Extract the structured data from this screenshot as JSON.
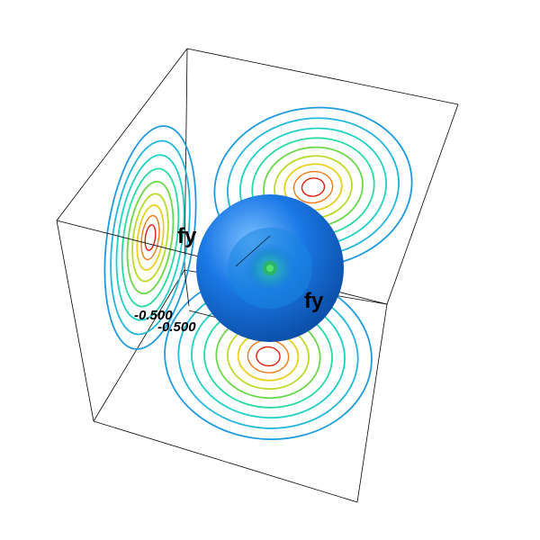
{
  "scene": {
    "axis_labels": {
      "vertical": "fy",
      "horizontal": "fy"
    },
    "tick_labels": {
      "first": "-0.500",
      "second": "-0.500"
    },
    "contour_colors": [
      "#1e9be0",
      "#21b7dc",
      "#1fd1c6",
      "#28dca0",
      "#6ad84a",
      "#b8dc2a",
      "#e8d21e",
      "#f07a18",
      "#e02010",
      "#ffffff"
    ],
    "sphere_colors": {
      "highlight": "#6fb4ff",
      "body": "#1a78e6",
      "shadow": "#0b4ea8",
      "inner_glow": "#2ea8a8"
    }
  }
}
